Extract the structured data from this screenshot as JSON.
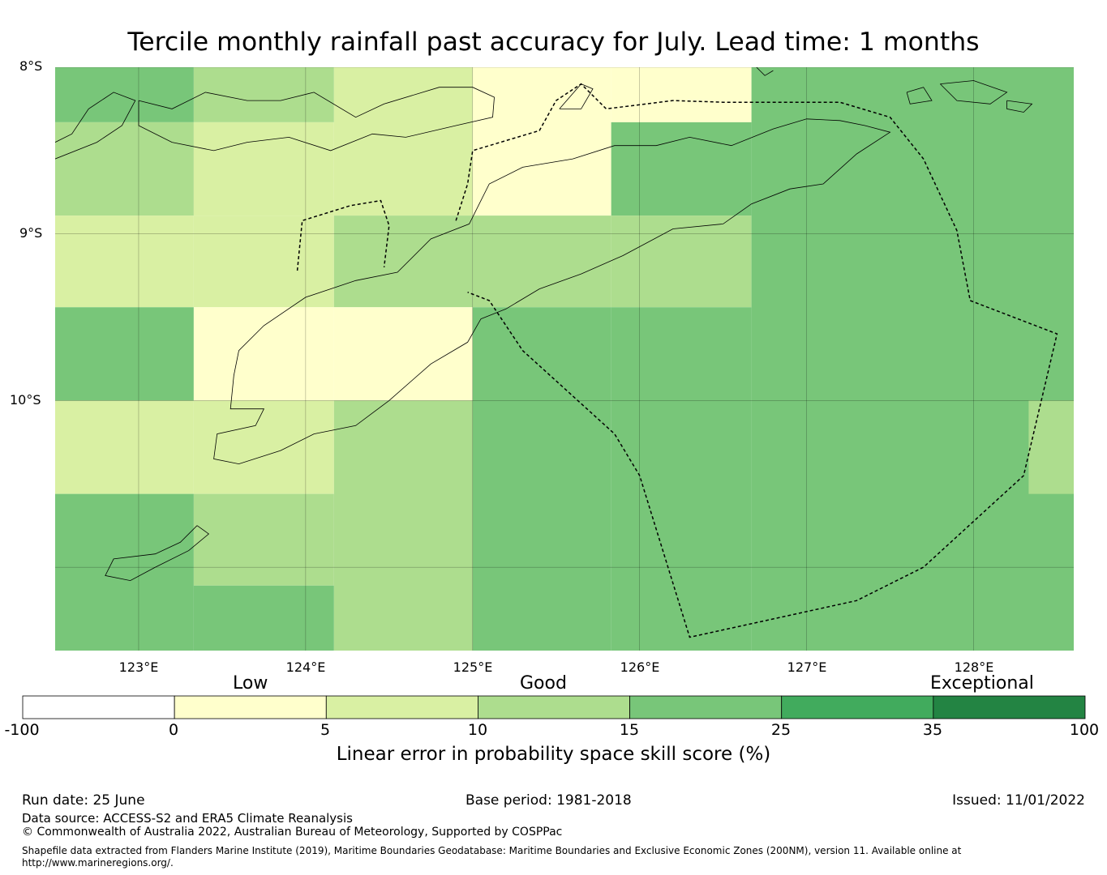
{
  "title": "Tercile monthly rainfall past accuracy for July. Lead time: 1 months",
  "map": {
    "lat_labels": [
      "8°S",
      "9°S",
      "10°S"
    ],
    "lon_labels": [
      "123°E",
      "124°E",
      "125°E",
      "126°E",
      "127°E",
      "128°E"
    ],
    "extent": {
      "lon": [
        122.5,
        128.6
      ],
      "lat": [
        -11.5,
        -8.0
      ]
    },
    "cells": [
      {
        "lon0": 122.5,
        "lon1": 123.33,
        "lat0": -8.0,
        "lat1": -8.33,
        "v": 20
      },
      {
        "lon0": 122.5,
        "lon1": 123.33,
        "lat0": -8.33,
        "lat1": -8.89,
        "v": 12
      },
      {
        "lon0": 122.5,
        "lon1": 123.33,
        "lat0": -8.89,
        "lat1": -9.44,
        "v": 7
      },
      {
        "lon0": 122.5,
        "lon1": 123.33,
        "lat0": -9.44,
        "lat1": -10.0,
        "v": 20
      },
      {
        "lon0": 122.5,
        "lon1": 123.33,
        "lat0": -10.0,
        "lat1": -10.56,
        "v": 7
      },
      {
        "lon0": 122.5,
        "lon1": 123.33,
        "lat0": -10.56,
        "lat1": -11.5,
        "v": 20
      },
      {
        "lon0": 123.33,
        "lon1": 124.17,
        "lat0": -8.0,
        "lat1": -8.33,
        "v": 12
      },
      {
        "lon0": 123.33,
        "lon1": 124.17,
        "lat0": -8.33,
        "lat1": -8.89,
        "v": 7
      },
      {
        "lon0": 123.33,
        "lon1": 124.17,
        "lat0": -8.89,
        "lat1": -9.44,
        "v": 7
      },
      {
        "lon0": 123.33,
        "lon1": 124.17,
        "lat0": -9.44,
        "lat1": -10.0,
        "v": 2
      },
      {
        "lon0": 123.33,
        "lon1": 124.17,
        "lat0": -10.0,
        "lat1": -10.56,
        "v": 7
      },
      {
        "lon0": 123.33,
        "lon1": 124.17,
        "lat0": -10.56,
        "lat1": -11.11,
        "v": 12
      },
      {
        "lon0": 123.33,
        "lon1": 124.17,
        "lat0": -11.11,
        "lat1": -11.5,
        "v": 20
      },
      {
        "lon0": 124.17,
        "lon1": 125.0,
        "lat0": -8.0,
        "lat1": -8.89,
        "v": 7
      },
      {
        "lon0": 124.17,
        "lon1": 125.0,
        "lat0": -8.89,
        "lat1": -9.44,
        "v": 12
      },
      {
        "lon0": 124.17,
        "lon1": 125.0,
        "lat0": -9.44,
        "lat1": -10.0,
        "v": 2
      },
      {
        "lon0": 124.17,
        "lon1": 125.0,
        "lat0": -10.0,
        "lat1": -11.5,
        "v": 12
      },
      {
        "lon0": 125.0,
        "lon1": 125.83,
        "lat0": -8.0,
        "lat1": -8.89,
        "v": 2
      },
      {
        "lon0": 125.0,
        "lon1": 125.83,
        "lat0": -8.89,
        "lat1": -9.44,
        "v": 12
      },
      {
        "lon0": 125.0,
        "lon1": 125.83,
        "lat0": -9.44,
        "lat1": -11.5,
        "v": 20
      },
      {
        "lon0": 125.83,
        "lon1": 126.67,
        "lat0": -8.0,
        "lat1": -8.33,
        "v": 2
      },
      {
        "lon0": 125.83,
        "lon1": 126.67,
        "lat0": -8.33,
        "lat1": -8.89,
        "v": 20
      },
      {
        "lon0": 125.83,
        "lon1": 126.67,
        "lat0": -8.89,
        "lat1": -9.44,
        "v": 12
      },
      {
        "lon0": 125.83,
        "lon1": 126.67,
        "lat0": -9.44,
        "lat1": -11.5,
        "v": 20
      },
      {
        "lon0": 126.67,
        "lon1": 128.6,
        "lat0": -8.0,
        "lat1": -11.5,
        "v": 20
      },
      {
        "lon0": 128.33,
        "lon1": 128.6,
        "lat0": -10.0,
        "lat1": -10.56,
        "v": 12
      }
    ],
    "coastlines": [
      [
        [
          125.05,
          -9.51
        ],
        [
          125.2,
          -9.45
        ],
        [
          125.4,
          -9.33
        ],
        [
          125.65,
          -9.24
        ],
        [
          125.9,
          -9.13
        ],
        [
          126.2,
          -8.97
        ],
        [
          126.5,
          -8.94
        ],
        [
          126.67,
          -8.82
        ],
        [
          126.9,
          -8.73
        ],
        [
          127.1,
          -8.7
        ],
        [
          127.3,
          -8.52
        ],
        [
          127.5,
          -8.39
        ],
        [
          127.35,
          -8.35
        ],
        [
          127.2,
          -8.32
        ],
        [
          127.0,
          -8.31
        ],
        [
          126.8,
          -8.37
        ],
        [
          126.55,
          -8.47
        ],
        [
          126.3,
          -8.42
        ],
        [
          126.1,
          -8.47
        ],
        [
          125.85,
          -8.47
        ],
        [
          125.6,
          -8.55
        ],
        [
          125.3,
          -8.6
        ],
        [
          125.1,
          -8.7
        ],
        [
          124.98,
          -8.94
        ],
        [
          124.75,
          -9.03
        ],
        [
          124.55,
          -9.23
        ],
        [
          124.3,
          -9.28
        ],
        [
          124.0,
          -9.38
        ],
        [
          123.75,
          -9.55
        ],
        [
          123.6,
          -9.7
        ],
        [
          123.57,
          -9.85
        ],
        [
          123.55,
          -10.05
        ],
        [
          123.75,
          -10.05
        ],
        [
          123.7,
          -10.15
        ],
        [
          123.47,
          -10.2
        ],
        [
          123.45,
          -10.35
        ],
        [
          123.6,
          -10.38
        ],
        [
          123.85,
          -10.3
        ],
        [
          124.05,
          -10.2
        ],
        [
          124.3,
          -10.15
        ],
        [
          124.5,
          -10.0
        ],
        [
          124.75,
          -9.78
        ],
        [
          124.97,
          -9.65
        ],
        [
          125.05,
          -9.51
        ]
      ],
      [
        [
          123.0,
          -8.2
        ],
        [
          123.2,
          -8.25
        ],
        [
          123.4,
          -8.15
        ],
        [
          123.65,
          -8.2
        ],
        [
          123.85,
          -8.2
        ],
        [
          124.05,
          -8.15
        ],
        [
          124.3,
          -8.3
        ],
        [
          124.47,
          -8.22
        ],
        [
          124.8,
          -8.12
        ],
        [
          125.0,
          -8.12
        ],
        [
          125.13,
          -8.18
        ],
        [
          125.12,
          -8.3
        ],
        [
          124.9,
          -8.35
        ],
        [
          124.6,
          -8.42
        ],
        [
          124.4,
          -8.4
        ],
        [
          124.15,
          -8.5
        ],
        [
          123.9,
          -8.42
        ],
        [
          123.65,
          -8.45
        ],
        [
          123.45,
          -8.5
        ],
        [
          123.2,
          -8.45
        ],
        [
          123.0,
          -8.35
        ],
        [
          123.0,
          -8.2
        ]
      ],
      [
        [
          122.5,
          -8.55
        ],
        [
          122.75,
          -8.45
        ],
        [
          122.9,
          -8.35
        ],
        [
          122.98,
          -8.2
        ],
        [
          122.85,
          -8.15
        ],
        [
          122.7,
          -8.25
        ],
        [
          122.6,
          -8.4
        ],
        [
          122.5,
          -8.45
        ]
      ],
      [
        [
          123.35,
          -10.75
        ],
        [
          123.25,
          -10.85
        ],
        [
          123.1,
          -10.92
        ],
        [
          122.85,
          -10.95
        ],
        [
          122.8,
          -11.05
        ],
        [
          122.95,
          -11.08
        ],
        [
          123.1,
          -11.0
        ],
        [
          123.3,
          -10.9
        ],
        [
          123.42,
          -10.8
        ],
        [
          123.35,
          -10.75
        ]
      ],
      [
        [
          125.52,
          -8.25
        ],
        [
          125.65,
          -8.1
        ],
        [
          125.72,
          -8.13
        ],
        [
          125.65,
          -8.25
        ],
        [
          125.52,
          -8.25
        ]
      ],
      [
        [
          126.7,
          -8.0
        ],
        [
          126.75,
          -8.05
        ],
        [
          126.8,
          -8.02
        ]
      ],
      [
        [
          127.8,
          -8.1
        ],
        [
          128.0,
          -8.08
        ],
        [
          128.2,
          -8.15
        ],
        [
          128.1,
          -8.22
        ],
        [
          127.9,
          -8.2
        ],
        [
          127.8,
          -8.1
        ]
      ],
      [
        [
          128.2,
          -8.2
        ],
        [
          128.35,
          -8.22
        ],
        [
          128.3,
          -8.27
        ],
        [
          128.2,
          -8.25
        ],
        [
          128.2,
          -8.2
        ]
      ],
      [
        [
          127.6,
          -8.15
        ],
        [
          127.7,
          -8.12
        ],
        [
          127.75,
          -8.2
        ],
        [
          127.62,
          -8.22
        ],
        [
          127.6,
          -8.15
        ]
      ]
    ],
    "boundary": [
      [
        124.9,
        -8.92
      ],
      [
        124.97,
        -8.7
      ],
      [
        125.0,
        -8.5
      ],
      [
        125.4,
        -8.38
      ],
      [
        125.5,
        -8.2
      ],
      [
        125.65,
        -8.1
      ],
      [
        125.8,
        -8.25
      ],
      [
        126.2,
        -8.2
      ],
      [
        126.5,
        -8.21
      ],
      [
        127.2,
        -8.21
      ],
      [
        127.5,
        -8.3
      ],
      [
        127.7,
        -8.55
      ],
      [
        127.9,
        -8.98
      ],
      [
        127.98,
        -9.4
      ],
      [
        128.5,
        -9.6
      ],
      [
        128.3,
        -10.45
      ],
      [
        127.7,
        -11.0
      ],
      [
        127.3,
        -11.2
      ],
      [
        126.3,
        -11.42
      ],
      [
        126.0,
        -10.45
      ],
      [
        125.85,
        -10.2
      ],
      [
        125.3,
        -9.7
      ],
      [
        125.1,
        -9.4
      ],
      [
        124.97,
        -9.35
      ]
    ],
    "boundary2": [
      [
        123.95,
        -9.22
      ],
      [
        123.98,
        -8.92
      ],
      [
        124.27,
        -8.83
      ],
      [
        124.45,
        -8.8
      ],
      [
        124.5,
        -8.95
      ],
      [
        124.47,
        -9.2
      ]
    ]
  },
  "colorbar": {
    "category_labels": [
      "Low",
      "Good",
      "Exceptional"
    ],
    "ticks": [
      "-100",
      "0",
      "5",
      "10",
      "15",
      "25",
      "35",
      "100"
    ],
    "bounds": [
      -100,
      0,
      5,
      10,
      15,
      25,
      35,
      100
    ],
    "colors": [
      "#ffffff",
      "#ffffcc",
      "#d9f0a3",
      "#addd8e",
      "#78c679",
      "#41ab5d",
      "#238443"
    ],
    "label": "Linear error in probability space skill score (%)"
  },
  "footer": {
    "run_date": "Run date: 25 June",
    "base_period": "Base period: 1981-2018",
    "issued": "Issued: 11/01/2022",
    "data_source": "Data source: ACCESS-S2 and ERA5 Climate Reanalysis",
    "copyright": "© Commonwealth of Australia 2022, Australian Bureau of Meteorology, Supported by COSPPac",
    "shapefile": "Shapefile data extracted from Flanders Marine Institute (2019), Maritime Boundaries Geodatabase: Maritime Boundaries and Exclusive Economic Zones (200NM), version 11. Available online at http://www.marineregions.org/."
  }
}
